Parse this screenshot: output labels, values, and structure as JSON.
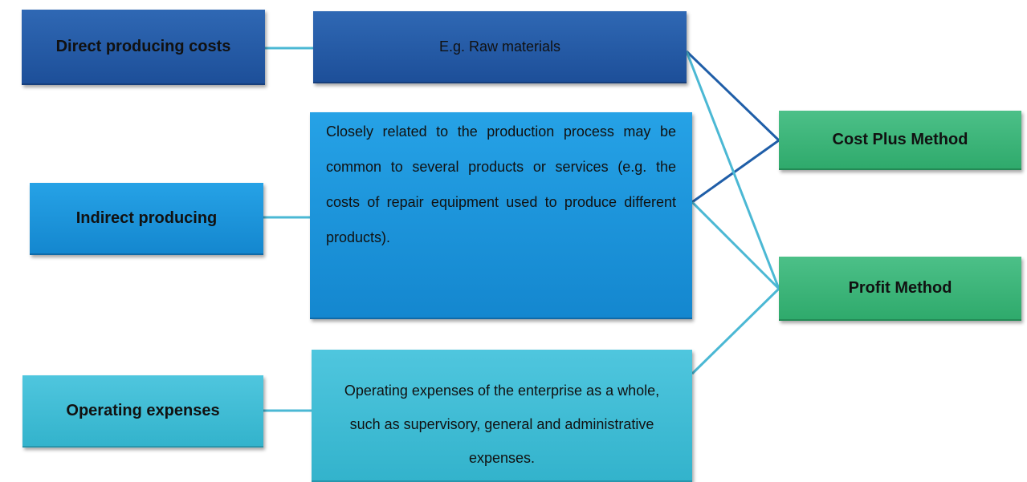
{
  "nodes": [
    {
      "label": "Direct producing costs"
    },
    {
      "label": "E.g. Raw materials"
    },
    {
      "label": "Indirect producing"
    },
    {
      "label": "Closely related to the production process may be common to several products or services (e.g. the costs of repair equipment used to produce different products)."
    },
    {
      "label": "Operating expenses"
    },
    {
      "label": "Operating expenses of the enterprise as a whole, such as supervisory, general and administrative expenses."
    },
    {
      "label": "Cost Plus Method"
    },
    {
      "label": "Profit Method"
    }
  ]
}
